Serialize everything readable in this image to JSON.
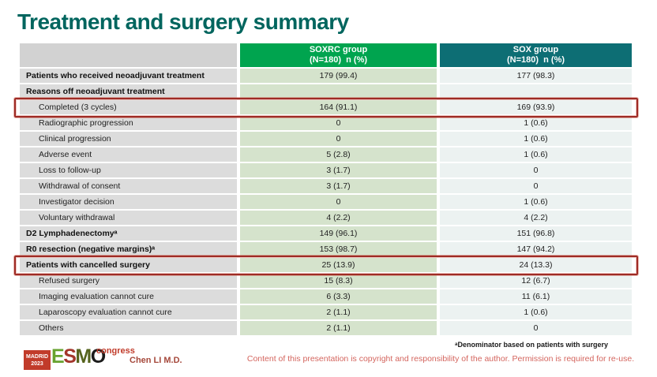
{
  "slide": {
    "title": "Treatment and surgery summary"
  },
  "table": {
    "columns": [
      {
        "label": ""
      },
      {
        "label": "SOXRC group",
        "sublabel": "(N=180)  n (%)"
      },
      {
        "label": "SOX group",
        "sublabel": "(N=180)  n (%)"
      }
    ],
    "rows": [
      {
        "label": "Patients who received neoadjuvant treatment",
        "bold": true,
        "indent": false,
        "soxrc": "179 (99.4)",
        "sox": "177 (98.3)",
        "highlight": false
      },
      {
        "label": "Reasons off neoadjuvant treatment",
        "bold": true,
        "indent": false,
        "soxrc": "",
        "sox": "",
        "highlight": false
      },
      {
        "label": "Completed (3 cycles)",
        "bold": false,
        "indent": true,
        "soxrc": "164 (91.1)",
        "sox": "169 (93.9)",
        "highlight": true
      },
      {
        "label": "Radiographic progression",
        "bold": false,
        "indent": true,
        "soxrc": "0",
        "sox": "1 (0.6)",
        "highlight": false
      },
      {
        "label": "Clinical progression",
        "bold": false,
        "indent": true,
        "soxrc": "0",
        "sox": "1 (0.6)",
        "highlight": false
      },
      {
        "label": "Adverse event",
        "bold": false,
        "indent": true,
        "soxrc": "5 (2.8)",
        "sox": "1 (0.6)",
        "highlight": false
      },
      {
        "label": "Loss to follow-up",
        "bold": false,
        "indent": true,
        "soxrc": "3 (1.7)",
        "sox": "0",
        "highlight": false
      },
      {
        "label": "Withdrawal of consent",
        "bold": false,
        "indent": true,
        "soxrc": "3 (1.7)",
        "sox": "0",
        "highlight": false
      },
      {
        "label": "Investigator decision",
        "bold": false,
        "indent": true,
        "soxrc": "0",
        "sox": "1 (0.6)",
        "highlight": false
      },
      {
        "label": "Voluntary withdrawal",
        "bold": false,
        "indent": true,
        "soxrc": "4 (2.2)",
        "sox": "4 (2.2)",
        "highlight": false
      },
      {
        "label": "D2 Lymphadenectomyᵃ",
        "bold": true,
        "indent": false,
        "soxrc": "149 (96.1)",
        "sox": "151 (96.8)",
        "highlight": false
      },
      {
        "label": "R0 resection (negative margins)ᵃ",
        "bold": true,
        "indent": false,
        "soxrc": "153 (98.7)",
        "sox": "147 (94.2)",
        "highlight": false
      },
      {
        "label": "Patients with cancelled surgery",
        "bold": true,
        "indent": false,
        "soxrc": "25 (13.9)",
        "sox": "24 (13.3)",
        "highlight": true
      },
      {
        "label": "Refused surgery",
        "bold": false,
        "indent": true,
        "soxrc": "15 (8.3)",
        "sox": "12 (6.7)",
        "highlight": false
      },
      {
        "label": "Imaging evaluation cannot cure",
        "bold": false,
        "indent": true,
        "soxrc": "6 (3.3)",
        "sox": "11 (6.1)",
        "highlight": false
      },
      {
        "label": "Laparoscopy evaluation cannot cure",
        "bold": false,
        "indent": true,
        "soxrc": "2 (1.1)",
        "sox": "1 (0.6)",
        "highlight": false
      },
      {
        "label": "Others",
        "bold": false,
        "indent": true,
        "soxrc": "2 (1.1)",
        "sox": "0",
        "highlight": false
      }
    ]
  },
  "footer": {
    "footnote": "ᵃDenominator based on patients with surgery",
    "copyright": "Content of this presentation is copyright and responsibility of the author. Permission is required for re-use.",
    "author": "Chen LI M.D.",
    "logo": {
      "badge_line1": "MADRID",
      "badge_line2": "2023",
      "brand": "ESMO",
      "brand_suffix": "congress"
    }
  },
  "colors": {
    "title_teal": "#00655E",
    "header_green": "#00A44F",
    "header_teal": "#0D6E74",
    "label_cell_gray": "#DCDCDC",
    "soxrc_cell_green": "#D5E3CC",
    "sox_cell_light": "#ECF2F1",
    "highlight_red": "#9E2B25",
    "copyright_red": "#D4655E",
    "author_red": "#A5483B",
    "logo_red": "#C13B2A"
  }
}
